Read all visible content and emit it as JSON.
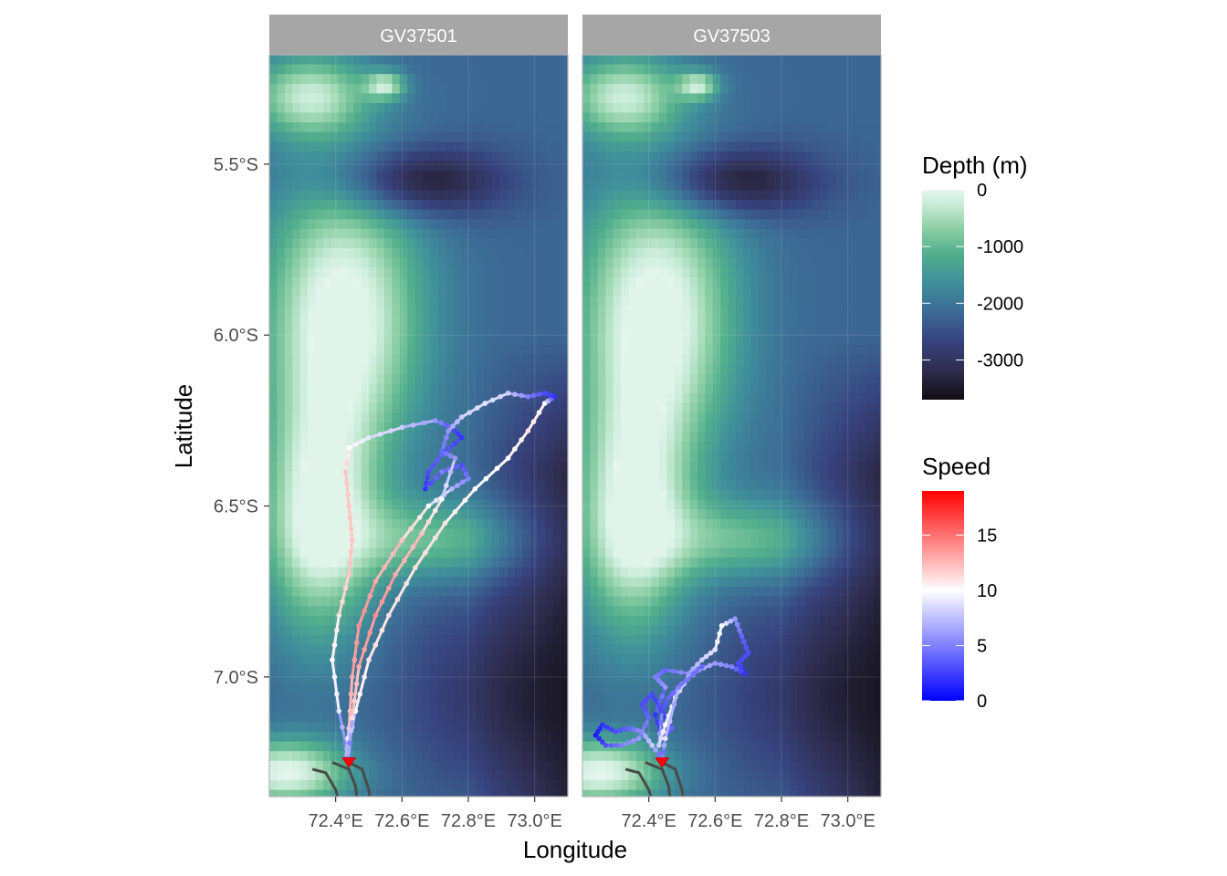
{
  "chart_data": {
    "type": "faceted-map",
    "xlabel": "Longitude",
    "ylabel": "Latitude",
    "xlim": [
      72.2,
      73.1
    ],
    "ylim": [
      -7.35,
      -5.18
    ],
    "x_ticks": [
      {
        "value": 72.4,
        "label": "72.4°E"
      },
      {
        "value": 72.6,
        "label": "72.6°E"
      },
      {
        "value": 72.8,
        "label": "72.8°E"
      },
      {
        "value": 73.0,
        "label": "73.0°E"
      }
    ],
    "y_ticks": [
      {
        "value": -5.5,
        "label": "5.5°S"
      },
      {
        "value": -6.0,
        "label": "6.0°S"
      },
      {
        "value": -6.5,
        "label": "6.5°S"
      },
      {
        "value": -7.0,
        "label": "7.0°S"
      }
    ],
    "grid": true,
    "panels": [
      "GV37501",
      "GV37503"
    ],
    "depth_legend": {
      "title": "Depth (m)",
      "range": [
        -3700,
        0
      ],
      "breaks": [
        0,
        -1000,
        -2000,
        -3000
      ],
      "labels": [
        "0",
        "-1000",
        "-2000",
        "-3000"
      ],
      "colors": [
        "#110d12",
        "#2e2d4f",
        "#37437e",
        "#3c6b95",
        "#3f8f9b",
        "#53b08c",
        "#8fd0a7",
        "#c9ecd8",
        "#e4f6ed"
      ]
    },
    "speed_legend": {
      "title": "Speed",
      "range": [
        0,
        19
      ],
      "breaks": [
        0,
        5,
        10,
        15
      ],
      "labels": [
        "0",
        "5",
        "10",
        "15"
      ],
      "low": "#0000ff",
      "mid": "#ffffff",
      "high": "#ff0000",
      "midpoint": 10
    },
    "series": [
      {
        "panel": "GV37501",
        "points": [
          [
            72.44,
            -7.24,
            3
          ],
          [
            72.41,
            -7.1,
            9
          ],
          [
            72.39,
            -6.95,
            10
          ],
          [
            72.41,
            -6.82,
            11
          ],
          [
            72.44,
            -6.7,
            12
          ],
          [
            72.45,
            -6.6,
            12
          ],
          [
            72.44,
            -6.5,
            12
          ],
          [
            72.43,
            -6.4,
            12
          ],
          [
            72.44,
            -6.33,
            10
          ],
          [
            72.5,
            -6.3,
            9
          ],
          [
            72.6,
            -6.27,
            8
          ],
          [
            72.7,
            -6.25,
            6
          ],
          [
            72.75,
            -6.27,
            3
          ],
          [
            72.78,
            -6.3,
            2
          ],
          [
            72.72,
            -6.35,
            4
          ],
          [
            72.68,
            -6.4,
            3
          ],
          [
            72.67,
            -6.45,
            2
          ],
          [
            72.72,
            -6.4,
            5
          ],
          [
            72.78,
            -6.38,
            3
          ],
          [
            72.8,
            -6.42,
            5
          ],
          [
            72.75,
            -6.45,
            7
          ],
          [
            72.68,
            -6.5,
            10
          ],
          [
            72.6,
            -6.6,
            12
          ],
          [
            72.52,
            -6.72,
            13
          ],
          [
            72.47,
            -6.85,
            14
          ],
          [
            72.45,
            -7.0,
            13
          ],
          [
            72.44,
            -7.15,
            12
          ],
          [
            72.43,
            -7.24,
            4
          ],
          [
            72.46,
            -7.1,
            10
          ],
          [
            72.5,
            -6.95,
            11
          ],
          [
            72.56,
            -6.82,
            11
          ],
          [
            72.64,
            -6.68,
            11
          ],
          [
            72.73,
            -6.55,
            11
          ],
          [
            72.82,
            -6.45,
            10
          ],
          [
            72.92,
            -6.36,
            10
          ],
          [
            72.98,
            -6.28,
            11
          ],
          [
            73.03,
            -6.2,
            10
          ],
          [
            73.06,
            -6.18,
            2
          ],
          [
            73.03,
            -6.17,
            3
          ],
          [
            72.98,
            -6.18,
            5
          ],
          [
            72.92,
            -6.17,
            8
          ],
          [
            72.85,
            -6.2,
            9
          ],
          [
            72.78,
            -6.24,
            8
          ],
          [
            72.74,
            -6.28,
            6
          ],
          [
            72.72,
            -6.34,
            4
          ],
          [
            72.76,
            -6.36,
            6
          ],
          [
            72.72,
            -6.48,
            10
          ],
          [
            72.66,
            -6.58,
            12
          ],
          [
            72.58,
            -6.7,
            13
          ],
          [
            72.52,
            -6.82,
            14
          ],
          [
            72.47,
            -6.97,
            13
          ],
          [
            72.45,
            -7.12,
            11
          ],
          [
            72.44,
            -7.23,
            2
          ]
        ]
      },
      {
        "panel": "GV37503",
        "points": [
          [
            72.44,
            -7.24,
            3
          ],
          [
            72.41,
            -7.2,
            8
          ],
          [
            72.38,
            -7.16,
            6
          ],
          [
            72.34,
            -7.15,
            4
          ],
          [
            72.3,
            -7.16,
            3
          ],
          [
            72.26,
            -7.14,
            2
          ],
          [
            72.24,
            -7.17,
            1
          ],
          [
            72.27,
            -7.2,
            3
          ],
          [
            72.32,
            -7.2,
            5
          ],
          [
            72.37,
            -7.18,
            6
          ],
          [
            72.4,
            -7.12,
            4
          ],
          [
            72.38,
            -7.08,
            3
          ],
          [
            72.41,
            -7.05,
            3
          ],
          [
            72.44,
            -7.1,
            2
          ],
          [
            72.47,
            -7.15,
            4
          ],
          [
            72.44,
            -7.18,
            3
          ],
          [
            72.42,
            -7.11,
            2
          ],
          [
            72.45,
            -7.03,
            6
          ],
          [
            72.42,
            -7.0,
            5
          ],
          [
            72.45,
            -6.98,
            4
          ],
          [
            72.52,
            -6.99,
            6
          ],
          [
            72.56,
            -6.95,
            8
          ],
          [
            72.6,
            -6.92,
            9
          ],
          [
            72.62,
            -6.85,
            10
          ],
          [
            72.66,
            -6.83,
            6
          ],
          [
            72.68,
            -6.88,
            4
          ],
          [
            72.7,
            -6.93,
            3
          ],
          [
            72.67,
            -6.96,
            3
          ],
          [
            72.69,
            -6.99,
            2
          ],
          [
            72.65,
            -6.97,
            5
          ],
          [
            72.6,
            -6.96,
            6
          ],
          [
            72.55,
            -6.98,
            7
          ],
          [
            72.5,
            -7.02,
            5
          ],
          [
            72.46,
            -7.06,
            4
          ],
          [
            72.44,
            -7.1,
            3
          ],
          [
            72.43,
            -7.2,
            8
          ],
          [
            72.45,
            -7.14,
            10
          ],
          [
            72.48,
            -7.06,
            9
          ],
          [
            72.52,
            -7.0,
            7
          ],
          [
            72.56,
            -6.97,
            4
          ],
          [
            72.49,
            -7.03,
            5
          ],
          [
            72.45,
            -7.18,
            9
          ],
          [
            72.44,
            -7.24,
            2
          ]
        ]
      }
    ],
    "origin_marker": {
      "x": 72.44,
      "y": -7.245
    }
  }
}
